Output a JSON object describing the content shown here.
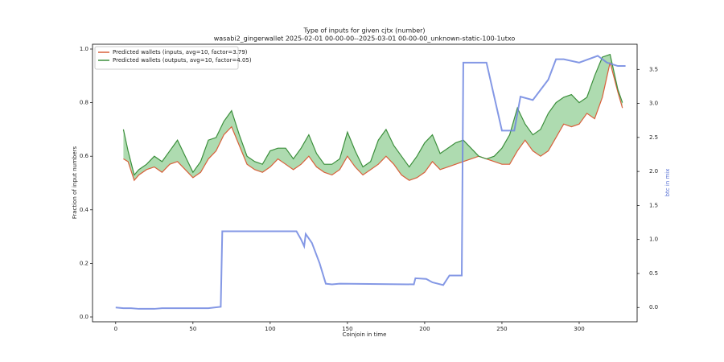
{
  "chart_data": {
    "type": "line",
    "title": "Type of inputs for given cjtx (number)",
    "subtitle": "wasabi2_gingerwallet 2025-02-01 00-00-00--2025-03-01 00-00-00_unknown-static-100-1utxo",
    "x_label": "Coinjoin in time",
    "y_label": "Fraction of input numbers",
    "y2_label": "btc in mix",
    "xlim": [
      -15,
      337.5
    ],
    "ylim": [
      -0.018,
      1.018
    ],
    "y2lim": [
      -0.21,
      3.87
    ],
    "xticks": [
      0,
      50,
      100,
      150,
      200,
      250,
      300
    ],
    "yticks": [
      {
        "value": 0,
        "label": "0.0"
      },
      {
        "value": 0.2,
        "label": "0.2"
      },
      {
        "value": 0.4,
        "label": "0.4"
      },
      {
        "value": 0.6,
        "label": "0.6"
      },
      {
        "value": 0.8,
        "label": "0.8"
      },
      {
        "value": 1,
        "label": "1.0"
      }
    ],
    "y2ticks": [
      {
        "value": 0,
        "label": "0.0"
      },
      {
        "value": 0.5,
        "label": "0.5"
      },
      {
        "value": 1,
        "label": "1.0"
      },
      {
        "value": 1.5,
        "label": "1.5"
      },
      {
        "value": 2,
        "label": "2.0"
      },
      {
        "value": 2.5,
        "label": "2.5"
      },
      {
        "value": 3,
        "label": "3.0"
      },
      {
        "value": 3.5,
        "label": "3.5"
      }
    ],
    "legend": "upper left",
    "fill_between": true,
    "series": [
      {
        "name": "Predicted wallets (inputs, avg=10, factor=3.79)",
        "color": "#d9603b",
        "x": [
          5,
          8,
          12,
          15,
          20,
          25,
          30,
          35,
          40,
          45,
          50,
          55,
          60,
          65,
          70,
          75,
          80,
          85,
          90,
          95,
          100,
          105,
          110,
          115,
          120,
          125,
          130,
          135,
          140,
          145,
          150,
          155,
          160,
          165,
          170,
          175,
          180,
          185,
          190,
          195,
          200,
          205,
          210,
          215,
          220,
          225,
          230,
          235,
          240,
          245,
          250,
          255,
          260,
          265,
          270,
          275,
          280,
          285,
          290,
          295,
          300,
          305,
          310,
          315,
          320,
          325,
          328
        ],
        "values": [
          0.59,
          0.58,
          0.51,
          0.53,
          0.55,
          0.56,
          0.54,
          0.57,
          0.58,
          0.55,
          0.52,
          0.54,
          0.59,
          0.62,
          0.68,
          0.71,
          0.64,
          0.57,
          0.55,
          0.54,
          0.56,
          0.59,
          0.57,
          0.55,
          0.57,
          0.6,
          0.56,
          0.54,
          0.53,
          0.55,
          0.6,
          0.56,
          0.53,
          0.55,
          0.57,
          0.6,
          0.57,
          0.53,
          0.51,
          0.52,
          0.54,
          0.58,
          0.55,
          0.56,
          0.57,
          0.58,
          0.59,
          0.6,
          0.59,
          0.58,
          0.57,
          0.57,
          0.62,
          0.66,
          0.62,
          0.6,
          0.62,
          0.67,
          0.72,
          0.71,
          0.72,
          0.76,
          0.74,
          0.82,
          0.95,
          0.84,
          0.78
        ]
      },
      {
        "name": "Predicted wallets (outputs, avg=10, factor=4.05)",
        "color": "#3c8f3c",
        "x": [
          5,
          8,
          12,
          15,
          20,
          25,
          30,
          35,
          40,
          45,
          50,
          55,
          60,
          65,
          70,
          75,
          80,
          85,
          90,
          95,
          100,
          105,
          110,
          115,
          120,
          125,
          130,
          135,
          140,
          145,
          150,
          155,
          160,
          165,
          170,
          175,
          180,
          185,
          190,
          195,
          200,
          205,
          210,
          215,
          220,
          225,
          230,
          235,
          240,
          245,
          250,
          255,
          260,
          265,
          270,
          275,
          280,
          285,
          290,
          295,
          300,
          305,
          310,
          315,
          320,
          325,
          328
        ],
        "values": [
          0.7,
          0.62,
          0.53,
          0.55,
          0.57,
          0.6,
          0.58,
          0.62,
          0.66,
          0.6,
          0.54,
          0.58,
          0.66,
          0.67,
          0.73,
          0.77,
          0.68,
          0.6,
          0.58,
          0.57,
          0.62,
          0.63,
          0.63,
          0.59,
          0.63,
          0.68,
          0.61,
          0.57,
          0.57,
          0.59,
          0.69,
          0.62,
          0.56,
          0.58,
          0.66,
          0.7,
          0.64,
          0.6,
          0.56,
          0.6,
          0.65,
          0.68,
          0.61,
          0.63,
          0.65,
          0.66,
          0.63,
          0.6,
          0.59,
          0.6,
          0.63,
          0.68,
          0.78,
          0.72,
          0.68,
          0.7,
          0.76,
          0.8,
          0.82,
          0.83,
          0.8,
          0.82,
          0.9,
          0.97,
          0.98,
          0.85,
          0.8
        ]
      },
      {
        "color": "#6f86e0",
        "axis": "y2",
        "x": [
          0,
          5,
          10,
          15,
          25,
          30,
          60,
          68,
          69,
          84,
          117,
          120,
          122,
          123,
          127,
          132,
          136,
          140,
          145,
          193,
          194,
          201,
          205,
          212,
          216,
          224,
          225,
          240,
          250,
          258,
          262,
          270,
          280,
          285,
          290,
          300,
          312,
          318,
          325,
          330
        ],
        "values": [
          0.0,
          -0.01,
          -0.01,
          -0.02,
          -0.02,
          -0.01,
          -0.01,
          0.01,
          1.12,
          1.12,
          1.12,
          1.0,
          0.9,
          1.08,
          0.95,
          0.65,
          0.35,
          0.34,
          0.35,
          0.34,
          0.43,
          0.42,
          0.37,
          0.33,
          0.47,
          0.47,
          3.6,
          3.6,
          2.6,
          2.6,
          3.1,
          3.05,
          3.35,
          3.65,
          3.65,
          3.6,
          3.7,
          3.6,
          3.55,
          3.55
        ]
      }
    ]
  }
}
